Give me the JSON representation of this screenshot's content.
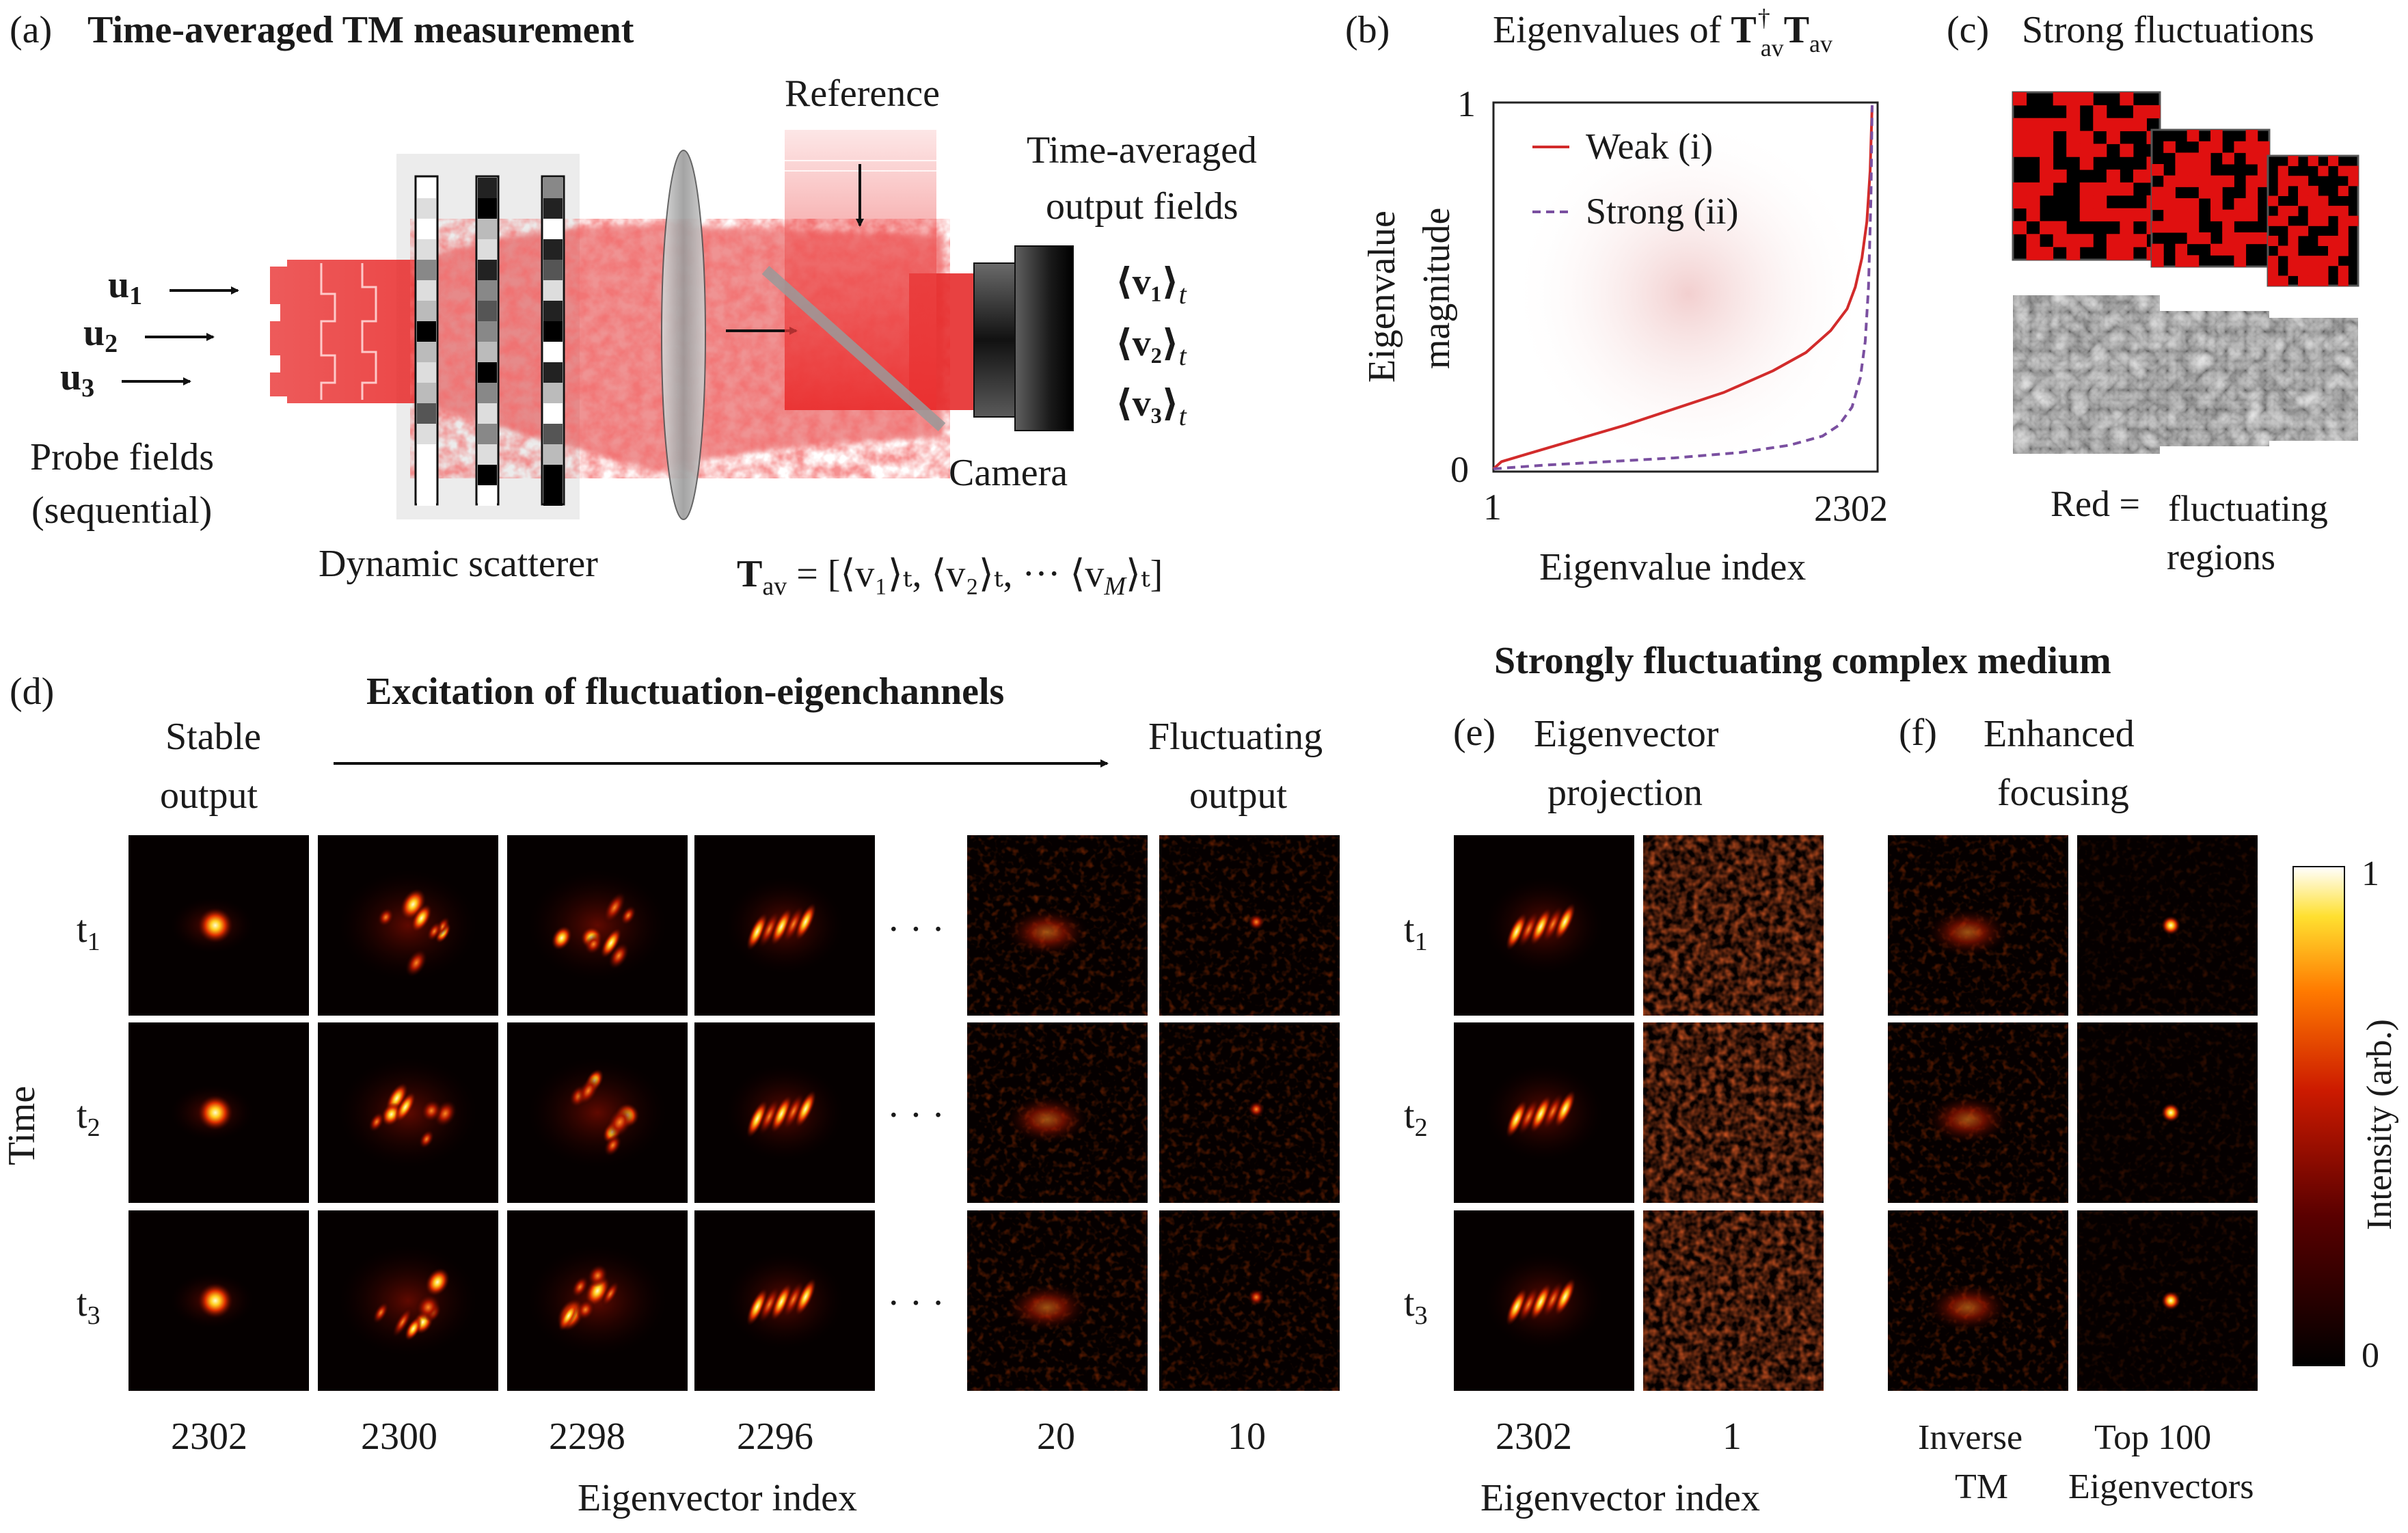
{
  "panels": {
    "a": {
      "letter": "(a)",
      "title": "Time-averaged TM measurement",
      "reference": "Reference",
      "output_title_1": "Time-averaged",
      "output_title_2": "output fields",
      "probe_1": "u",
      "probe_2": "u",
      "probe_3": "u",
      "probe_sub_1": "1",
      "probe_sub_2": "2",
      "probe_sub_3": "3",
      "probe_label_1": "Probe fields",
      "probe_label_2": "(sequential)",
      "scatterer": "Dynamic scatterer",
      "camera": "Camera",
      "out_1": "⟨v₁⟩",
      "out_2": "⟨v₂⟩",
      "out_3": "⟨v₃⟩",
      "out_t": "t",
      "tav_T": "T",
      "tav_sub": "av",
      "tav_rest": " = [⟨v₁⟩ₜ, ⟨v₂⟩ₜ, ··· ⟨v",
      "tav_M": "M",
      "tav_end": "⟩ₜ]"
    },
    "b": {
      "letter": "(b)",
      "title_pre": "Eigenvalues of ",
      "title_T1": "T",
      "title_dag": "†",
      "title_sub1": "av",
      "title_T2": "T",
      "title_sub2": "av",
      "ylabel_1": "Eigenvalue",
      "ylabel_2": "magnitude",
      "xlabel": "Eigenvalue index",
      "legend_weak": "Weak (i)",
      "legend_strong": "Strong (ii)"
    },
    "c": {
      "letter": "(c)",
      "title": "Strong fluctuations",
      "caption_1": "Red =",
      "caption_2": "fluctuating",
      "caption_3": "regions"
    },
    "d": {
      "letter": "(d)",
      "title": "Excitation of fluctuation-eigenchannels",
      "stable_1": "Stable",
      "stable_2": "output",
      "fluct_1": "Fluctuating",
      "fluct_2": "output",
      "time": "Time",
      "t1": "t",
      "t2": "t",
      "t3": "t",
      "t1s": "1",
      "t2s": "2",
      "t3s": "3",
      "dots": "· · ·",
      "indices": [
        "2302",
        "2300",
        "2298",
        "2296",
        "20",
        "10"
      ],
      "xlabel": "Eigenvector index"
    },
    "ef_header": "Strongly fluctuating complex medium",
    "e": {
      "letter": "(e)",
      "title_1": "Eigenvector",
      "title_2": "projection",
      "t1": "t",
      "t2": "t",
      "t3": "t",
      "t1s": "1",
      "t2s": "2",
      "t3s": "3",
      "indices": [
        "2302",
        "1"
      ],
      "xlabel": "Eigenvector index"
    },
    "f": {
      "letter": "(f)",
      "title_1": "Enhanced",
      "title_2": "focusing",
      "col1_1": "Inverse",
      "col1_2": "TM",
      "col2_1": "Top 100",
      "col2_2": "Eigenvectors",
      "colorbar_label": "Intensity (arb.)",
      "colorbar_max": "1",
      "colorbar_min": "0"
    }
  },
  "chart_data": {
    "type": "line",
    "title": "Eigenvalues of T†av Tav",
    "xlabel": "Eigenvalue index",
    "ylabel": "Eigenvalue magnitude",
    "xlim": [
      1,
      2302
    ],
    "ylim": [
      0,
      1
    ],
    "xticks": [
      "1",
      "2302"
    ],
    "yticks": [
      "0",
      "1"
    ],
    "series": [
      {
        "name": "Weak (i)",
        "style": "solid",
        "color": "#d22b2b",
        "x": [
          1,
          50,
          200,
          500,
          800,
          1100,
          1400,
          1700,
          1900,
          2050,
          2150,
          2200,
          2240,
          2270,
          2290,
          2302
        ],
        "y": [
          0.0,
          0.02,
          0.04,
          0.08,
          0.12,
          0.165,
          0.21,
          0.27,
          0.32,
          0.38,
          0.44,
          0.5,
          0.58,
          0.68,
          0.82,
          1.0
        ]
      },
      {
        "name": "Strong (ii)",
        "style": "dashed",
        "color": "#7a4fa0",
        "x": [
          1,
          300,
          700,
          1100,
          1500,
          1800,
          2000,
          2100,
          2180,
          2230,
          2260,
          2280,
          2295,
          2302
        ],
        "y": [
          0.0,
          0.01,
          0.02,
          0.03,
          0.045,
          0.065,
          0.09,
          0.12,
          0.17,
          0.25,
          0.35,
          0.5,
          0.75,
          1.0
        ]
      }
    ]
  },
  "colors": {
    "beam_red": "#e02020",
    "curve_weak": "#d22b2b",
    "curve_strong": "#7a4fa0"
  }
}
